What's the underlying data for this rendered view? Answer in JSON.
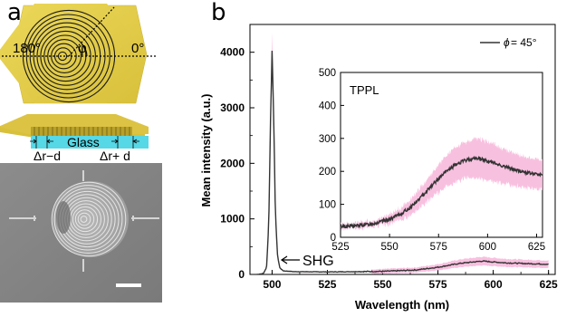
{
  "figure": {
    "panel_a": {
      "letter": "a",
      "angle_180": "180°",
      "angle_0": "0°",
      "phi_symbol": "φ",
      "substrate_label": "Glass",
      "dim_left": "Δr−d",
      "dim_right": "Δr+ d"
    },
    "panel_b": {
      "letter": "b",
      "legend_phi": "ϕ",
      "legend_value": " = 45°",
      "shg_label": "SHG",
      "inset_label": "TPPL"
    },
    "colors": {
      "gold": "#e2cc45",
      "gold_dark": "#b39b22",
      "glass": "#56d8e6",
      "line": "#333333",
      "shade": "#f7b9dc"
    }
  },
  "chart_data": [
    {
      "type": "line",
      "title": "",
      "xlabel": "Wavelength (nm)",
      "ylabel": "Mean intensity (a.u.)",
      "xlim": [
        490,
        628
      ],
      "ylim": [
        0,
        4500
      ],
      "xticks": [
        500,
        525,
        550,
        575,
        600,
        625
      ],
      "yticks": [
        0,
        1000,
        2000,
        3000,
        4000
      ],
      "legend_position": "top-right",
      "series": [
        {
          "name": "ϕ = 45°",
          "x": [
            493,
            496,
            497.5,
            498.5,
            499.2,
            500,
            500.8,
            501.5,
            502.5,
            503.5,
            505,
            510,
            525,
            550,
            565,
            575,
            585,
            595,
            605,
            615,
            625
          ],
          "y": [
            0,
            15,
            120,
            900,
            2600,
            4030,
            2700,
            1100,
            320,
            120,
            65,
            50,
            45,
            55,
            80,
            130,
            200,
            240,
            210,
            195,
            185
          ]
        }
      ],
      "annotations": [
        "SHG"
      ]
    },
    {
      "type": "line",
      "title": "",
      "label": "TPPL",
      "xlabel": "",
      "ylabel": "",
      "xlim": [
        525,
        628
      ],
      "ylim": [
        0,
        500
      ],
      "xticks": [
        525,
        550,
        575,
        600,
        625
      ],
      "yticks": [
        0,
        100,
        200,
        300,
        400,
        500
      ],
      "series": [
        {
          "x": [
            525,
            530,
            535,
            540,
            545,
            550,
            555,
            560,
            565,
            570,
            575,
            580,
            585,
            590,
            595,
            600,
            605,
            610,
            615,
            620,
            625,
            628
          ],
          "y": [
            33,
            34,
            36,
            40,
            46,
            55,
            68,
            88,
            115,
            148,
            178,
            205,
            225,
            236,
            240,
            232,
            222,
            212,
            203,
            196,
            191,
            189
          ],
          "band": [
            8,
            8,
            9,
            10,
            11,
            14,
            18,
            22,
            28,
            35,
            42,
            48,
            52,
            56,
            60,
            58,
            55,
            50,
            48,
            46,
            45,
            45
          ]
        }
      ]
    }
  ]
}
